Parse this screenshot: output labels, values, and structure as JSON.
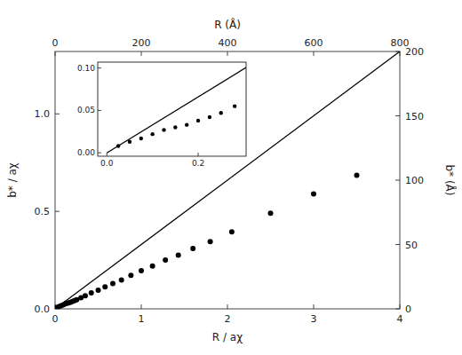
{
  "chart_data": [
    {
      "type": "scatter",
      "x_label": "R / aχ",
      "y_label": "b* / aχ",
      "x2_label": "R (Å)",
      "y2_label": "b* (Å)",
      "xlim": [
        0,
        4
      ],
      "xticks": [
        0,
        1,
        2,
        3,
        4
      ],
      "ylim": [
        0,
        1.32
      ],
      "yticks": [
        {
          "value": 0,
          "label": "0.0"
        },
        0.5,
        {
          "value": 1,
          "label": "1.0"
        }
      ],
      "x2lim": [
        0,
        800
      ],
      "x2ticks": [
        0,
        200,
        400,
        600,
        800
      ],
      "y2lim": [
        0,
        200
      ],
      "y2ticks": [
        0,
        50,
        100,
        150,
        200
      ],
      "grid": false,
      "series": [
        {
          "type": "line",
          "color": "#000000",
          "x": [
            0,
            4
          ],
          "values": [
            0,
            1.32
          ]
        },
        {
          "type": "scatter",
          "color": "#000000",
          "x": [
            0.025,
            0.05,
            0.075,
            0.1,
            0.125,
            0.15,
            0.175,
            0.2,
            0.225,
            0.25,
            0.3,
            0.35,
            0.42,
            0.5,
            0.58,
            0.67,
            0.77,
            0.88,
            1.0,
            1.13,
            1.28,
            1.43,
            1.6,
            1.8,
            2.05,
            2.5,
            3.0,
            3.5
          ],
          "values": [
            0.008,
            0.013,
            0.017,
            0.022,
            0.027,
            0.03,
            0.033,
            0.038,
            0.042,
            0.047,
            0.057,
            0.067,
            0.082,
            0.096,
            0.113,
            0.13,
            0.148,
            0.172,
            0.196,
            0.22,
            0.25,
            0.275,
            0.31,
            0.345,
            0.395,
            0.49,
            0.59,
            0.685
          ]
        }
      ]
    },
    {
      "type": "scatter",
      "xlim": [
        -0.02,
        0.305
      ],
      "xticks": [
        {
          "value": 0,
          "label": "0.0"
        },
        0.2
      ],
      "ylim": [
        -0.004,
        0.107
      ],
      "yticks": [
        {
          "value": 0,
          "label": "0.00"
        },
        0.05,
        {
          "value": 0.1,
          "label": "0.10"
        }
      ],
      "grid": false,
      "series": [
        {
          "type": "line",
          "color": "#000000",
          "x": [
            0,
            0.31
          ],
          "values": [
            0,
            0.1023
          ]
        },
        {
          "type": "scatter",
          "color": "#000000",
          "x": [
            0.025,
            0.05,
            0.075,
            0.1,
            0.125,
            0.15,
            0.175,
            0.2,
            0.225,
            0.25,
            0.28
          ],
          "values": [
            0.008,
            0.013,
            0.017,
            0.022,
            0.027,
            0.03,
            0.033,
            0.038,
            0.042,
            0.047,
            0.055
          ]
        }
      ]
    }
  ]
}
